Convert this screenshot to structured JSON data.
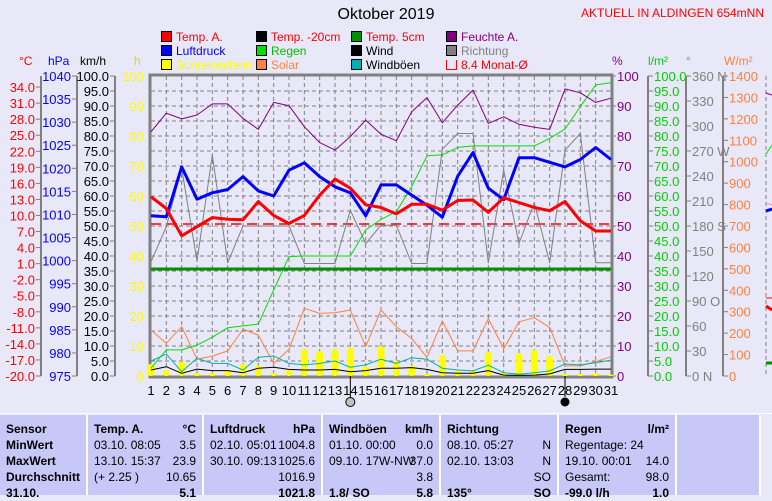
{
  "title": "Oktober 2019",
  "location": "AKTUELL IN ALDINGEN 654mNN",
  "legend": [
    {
      "label": "Temp. A.",
      "swatch": "#ff0000",
      "text_color": "#ff0000"
    },
    {
      "label": "Luftdruck",
      "swatch": "#0000ff",
      "text_color": "#0000ff"
    },
    {
      "label": "Sonnenschein",
      "swatch": "#ffff00",
      "text_color": "#ffff00"
    },
    {
      "label": "Temp. -20cm",
      "swatch": "#000000",
      "text_color": "#ff0000"
    },
    {
      "label": "Regen",
      "swatch": "#00e000",
      "text_color": "#00c000"
    },
    {
      "label": "Solar",
      "swatch": "#ff8040",
      "text_color": "#ff8040"
    },
    {
      "label": "Temp. 5cm",
      "swatch": "#009000",
      "text_color": "#ff0000"
    },
    {
      "label": "Wind",
      "swatch": "#000000",
      "text_color": "#000000"
    },
    {
      "label": "Windböen",
      "swatch": "#00b0b0",
      "text_color": "#000000"
    },
    {
      "label": "Feuchte A.",
      "swatch": "#800080",
      "text_color": "#800080"
    },
    {
      "label": "Richtung",
      "swatch": "#808080",
      "text_color": "#808080"
    },
    {
      "label": "8.4 Monat-Ø",
      "swatch": "outline",
      "text_color": "#ff0000"
    }
  ],
  "chart_data": {
    "type": "line",
    "title": "Oktober 2019",
    "x": [
      1,
      2,
      3,
      4,
      5,
      6,
      7,
      8,
      9,
      10,
      11,
      12,
      13,
      14,
      15,
      16,
      17,
      18,
      19,
      20,
      21,
      22,
      23,
      24,
      25,
      26,
      27,
      28,
      29,
      30,
      31
    ],
    "x_tick_labels": [
      "1",
      "2",
      "3",
      "4",
      "5",
      "6",
      "7",
      "8",
      "9",
      "10",
      "11",
      "12",
      "13",
      "14",
      "15",
      "16",
      "17",
      "18",
      "19",
      "20",
      "21",
      "22",
      "23",
      "24",
      "25",
      "26",
      "27",
      "28",
      "29",
      "30",
      "31"
    ],
    "grid": true,
    "axes": {
      "temp": {
        "unit": "°C",
        "color": "#ff0000",
        "range": [
          -20,
          36.07
        ],
        "ticks": [
          -20,
          -17,
          -14,
          -11,
          -8,
          -5,
          -2,
          1,
          4,
          7,
          10,
          13,
          16,
          19,
          22,
          25,
          28,
          31,
          34
        ],
        "decimals": 1,
        "side": "left"
      },
      "pressure": {
        "unit": "hPa",
        "color": "#0000ff",
        "range": [
          975,
          1040
        ],
        "ticks": [
          975,
          980,
          985,
          990,
          995,
          1000,
          1005,
          1010,
          1015,
          1020,
          1025,
          1030,
          1035,
          1040
        ],
        "decimals": 0,
        "side": "left"
      },
      "wind": {
        "unit": "km/h",
        "color": "#000000",
        "range": [
          0,
          100
        ],
        "ticks": [
          0,
          5,
          10,
          15,
          20,
          25,
          30,
          35,
          40,
          45,
          50,
          55,
          60,
          65,
          70,
          75,
          80,
          85,
          90,
          95,
          100
        ],
        "decimals": 1,
        "side": "left"
      },
      "sun": {
        "unit": "h",
        "color": "#ffff00",
        "range": [
          0,
          100
        ],
        "ticks": [
          0,
          10,
          20,
          30,
          40,
          50,
          60,
          70,
          80,
          90,
          100
        ],
        "decimals": 0,
        "side": "left"
      },
      "humidity": {
        "unit": "%",
        "color": "#800080",
        "range": [
          0,
          100
        ],
        "ticks": [
          0,
          10,
          20,
          30,
          40,
          50,
          60,
          70,
          80,
          90,
          100
        ],
        "decimals": 0,
        "side": "right"
      },
      "rain": {
        "unit": "l/m²",
        "color": "#00d000",
        "range": [
          0,
          100
        ],
        "ticks": [
          0,
          5,
          10,
          15,
          20,
          25,
          30,
          35,
          40,
          45,
          50,
          55,
          60,
          65,
          70,
          75,
          80,
          85,
          90,
          95,
          100
        ],
        "decimals": 1,
        "side": "right"
      },
      "direction": {
        "unit": "°",
        "color": "#808080",
        "range": [
          0,
          360
        ],
        "ticks": [
          0,
          30,
          60,
          90,
          120,
          150,
          180,
          210,
          240,
          270,
          300,
          330,
          360
        ],
        "tick_labels": [
          "0   N",
          "30",
          "60",
          "90   O",
          "120",
          "150",
          "180 S",
          "210",
          "240",
          "270 W",
          "300",
          "330",
          "360 N"
        ],
        "side": "right"
      },
      "solar": {
        "unit": "W/m²",
        "color": "#ff8040",
        "range": [
          0,
          1400
        ],
        "ticks": [
          0,
          100,
          200,
          300,
          400,
          500,
          600,
          700,
          800,
          900,
          1000,
          1100,
          1200,
          1300,
          1400
        ],
        "decimals": 0,
        "side": "right"
      }
    },
    "series": [
      {
        "name": "Sonnenschein",
        "axis": "sun",
        "kind": "bar",
        "color": "#ffff00",
        "values": [
          4,
          2,
          4.8,
          1,
          1,
          2,
          4,
          3.5,
          1,
          2,
          8.9,
          8.3,
          8.9,
          9.4,
          3.3,
          10,
          5,
          3.5,
          0.7,
          7,
          1.8,
          1.8,
          8.1,
          1.2,
          7.6,
          8.7,
          6.7,
          0.7,
          0.7,
          1,
          0.5
        ]
      },
      {
        "name": "Solar",
        "axis": "solar",
        "kind": "line",
        "color": "#ff8040",
        "width": 1,
        "values": [
          214,
          153,
          230,
          78,
          93,
          117,
          219,
          191,
          59,
          124,
          316,
          292,
          295,
          308,
          138,
          308,
          230,
          175,
          87,
          257,
          117,
          117,
          268,
          128,
          253,
          272,
          227,
          47,
          47,
          67,
          90
        ]
      },
      {
        "name": "Richtung",
        "axis": "direction",
        "kind": "line",
        "color": "#808080",
        "width": 1,
        "values": [
          137,
          179,
          249,
          138,
          265,
          136,
          180,
          180,
          180,
          180,
          135,
          135,
          135,
          199,
          159,
          181,
          181,
          135,
          135,
          272,
          291,
          291,
          136,
          247,
          159,
          208,
          136,
          271,
          291,
          136,
          136
        ]
      },
      {
        "name": "Regen",
        "axis": "rain",
        "kind": "line",
        "color": "#00e000",
        "width": 1,
        "values": [
          2.6,
          8.7,
          8.7,
          10.3,
          12.9,
          16.1,
          16.7,
          17.3,
          28.7,
          39.8,
          40,
          40,
          40,
          40,
          48.7,
          52.2,
          54.8,
          63.1,
          73.4,
          73.7,
          76.2,
          76.7,
          76.7,
          76.7,
          76.7,
          76.7,
          79.2,
          82.3,
          89.8,
          97,
          97.8
        ]
      },
      {
        "name": "Temp. 5cm",
        "axis": "temp",
        "kind": "line",
        "color": "#009000",
        "width": 3,
        "values": [
          0,
          0,
          0,
          0,
          0,
          0,
          0,
          0,
          0,
          0,
          0,
          0,
          0,
          0,
          0,
          0,
          0,
          0,
          0,
          0,
          0,
          0,
          0,
          0,
          0,
          0,
          0,
          0,
          0,
          0,
          0
        ]
      },
      {
        "name": "Windböen",
        "axis": "wind",
        "kind": "line",
        "color": "#00b0b0",
        "width": 1,
        "values": [
          5.0,
          7.3,
          1.4,
          5.9,
          4.2,
          4.2,
          2.0,
          6.2,
          6.7,
          4.2,
          3.7,
          4.2,
          5.0,
          2.9,
          3.7,
          5.6,
          4.2,
          6.1,
          5.6,
          2.6,
          2.0,
          1.7,
          3.6,
          1.1,
          0.6,
          1.1,
          1.7,
          4.0,
          3.7,
          4.4,
          5.3
        ]
      },
      {
        "name": "Wind",
        "axis": "wind",
        "kind": "line",
        "color": "#000000",
        "width": 1,
        "values": [
          2.0,
          3.1,
          0.9,
          2.3,
          1.8,
          1.8,
          1.1,
          2.6,
          2.9,
          2.2,
          2.0,
          2.0,
          2.2,
          1.4,
          1.8,
          2.6,
          2.6,
          2.8,
          2.2,
          1.1,
          0.9,
          0.9,
          1.8,
          0.3,
          0.2,
          0.3,
          0.7,
          2.2,
          2.2,
          2.3,
          2.3
        ]
      },
      {
        "name": "Feuchte A.",
        "axis": "humidity",
        "kind": "line",
        "color": "#800080",
        "width": 1,
        "values": [
          81.4,
          87.6,
          85.7,
          87,
          90.7,
          90.7,
          85.9,
          82.2,
          91.2,
          90.1,
          83.1,
          77.8,
          75.3,
          79.8,
          85.3,
          80.6,
          78.4,
          88.1,
          92.8,
          84.4,
          90.3,
          95.3,
          84.2,
          86.4,
          83.9,
          82.9,
          82.2,
          95.7,
          94.4,
          91.2,
          92.6
        ]
      },
      {
        "name": "Luftdruck",
        "axis": "pressure",
        "kind": "line",
        "color": "#0000ff",
        "width": 3,
        "values": [
          1009.7,
          1009.5,
          1020.3,
          1013.3,
          1014.7,
          1015.4,
          1018.2,
          1015.1,
          1014.0,
          1019.6,
          1021.2,
          1018.2,
          1016.0,
          1014.7,
          1009.7,
          1016.4,
          1016.4,
          1014.2,
          1012.0,
          1009.4,
          1018.3,
          1023.4,
          1015.7,
          1013.2,
          1022.3,
          1022.3,
          1021.3,
          1020.3,
          1021.9,
          1024.5,
          1021.9
        ]
      },
      {
        "name": "Temp. A.",
        "axis": "temp",
        "kind": "line",
        "color": "#ff0000",
        "width": 3,
        "values": [
          13.5,
          11.3,
          6.2,
          7.9,
          9.6,
          9.3,
          9.2,
          12.6,
          10.0,
          8.5,
          10.0,
          13.8,
          16.8,
          15.1,
          12.0,
          11.5,
          10.3,
          12.1,
          12.1,
          11.0,
          12.8,
          12.9,
          10.6,
          13.3,
          12.4,
          11.5,
          10.9,
          12.6,
          9.0,
          7.1,
          7.1
        ]
      }
    ],
    "reference_lines": [
      {
        "name": "Monat-Ø",
        "axis": "temp",
        "value": 8.4,
        "color": "#ff0000"
      }
    ],
    "moon_phases": [
      {
        "day": 14,
        "phase": "full"
      },
      {
        "day": 28,
        "phase": "new"
      }
    ]
  },
  "table": {
    "columns": [
      {
        "title": "Sensor",
        "unit": "",
        "rows": [
          [
            "MinWert",
            ""
          ],
          [
            "MaxWert",
            ""
          ],
          [
            "Durchschnitt",
            ""
          ],
          [
            "31.10.",
            ""
          ]
        ]
      },
      {
        "title": "Temp. A.",
        "unit": "°C",
        "rows": [
          [
            "03.10.  08:05",
            "3.5"
          ],
          [
            "13.10.  15:37",
            "23.9"
          ],
          [
            "(+ 2.25 )",
            "10.65"
          ],
          [
            "",
            "5.1"
          ]
        ]
      },
      {
        "title": "Luftdruck",
        "unit": "hPa",
        "rows": [
          [
            "02.10.  05:01",
            "1004.8"
          ],
          [
            "30.10.  09:13",
            "1025.6"
          ],
          [
            "",
            "1016.9"
          ],
          [
            "",
            "1021.8"
          ]
        ]
      },
      {
        "title": "Windböen",
        "unit": "km/h",
        "rows": [
          [
            "01.10.  00:00",
            "0.0"
          ],
          [
            "09.10.  17W-NW",
            "37.0"
          ],
          [
            "",
            "3.8"
          ],
          [
            "1.8/ SO",
            "5.8"
          ]
        ]
      },
      {
        "title": "Richtung",
        "unit": "",
        "rows": [
          [
            "08.10.  05:27",
            "N"
          ],
          [
            "02.10.  13:03",
            "N"
          ],
          [
            "",
            "SO"
          ],
          [
            "135°",
            "SO"
          ]
        ]
      },
      {
        "title": "Regen",
        "unit": "l/m²",
        "rows": [
          [
            "Regentage: 24",
            ""
          ],
          [
            "19.10.  00:01",
            "14.0"
          ],
          [
            "Gesamt:",
            "98.0"
          ],
          [
            "-99.0 l/h",
            "1.0"
          ]
        ]
      },
      {
        "title": "",
        "unit": "",
        "rows": [
          [
            "",
            ""
          ],
          [
            "",
            ""
          ],
          [
            "",
            ""
          ],
          [
            "",
            ""
          ]
        ]
      }
    ]
  }
}
